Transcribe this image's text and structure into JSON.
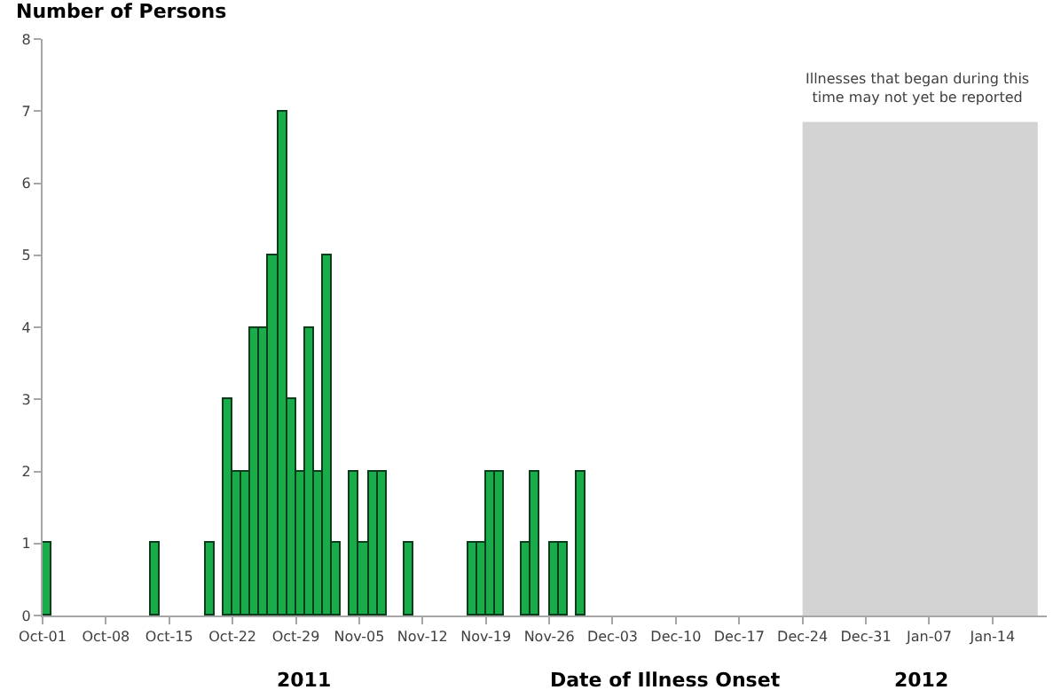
{
  "chart_data": {
    "type": "bar",
    "xlabel": "Date of Illness Onset",
    "ylabel": "Number of Persons",
    "x": [
      "2011-10-01",
      "2011-10-13",
      "2011-10-19",
      "2011-10-21",
      "2011-10-22",
      "2011-10-23",
      "2011-10-24",
      "2011-10-25",
      "2011-10-26",
      "2011-10-27",
      "2011-10-28",
      "2011-10-29",
      "2011-10-30",
      "2011-10-31",
      "2011-11-01",
      "2011-11-02",
      "2011-11-04",
      "2011-11-05",
      "2011-11-06",
      "2011-11-07",
      "2011-11-10",
      "2011-11-17",
      "2011-11-18",
      "2011-11-19",
      "2011-11-20",
      "2011-11-23",
      "2011-11-24",
      "2011-11-26",
      "2011-11-27",
      "2011-11-29"
    ],
    "values": [
      1,
      1,
      1,
      3,
      2,
      2,
      4,
      4,
      5,
      7,
      3,
      2,
      4,
      2,
      5,
      1,
      2,
      1,
      2,
      2,
      1,
      1,
      1,
      2,
      2,
      1,
      2,
      1,
      1,
      2
    ],
    "color": "#1aab4b",
    "xlim": [
      "2011-10-01",
      "2012-01-20"
    ],
    "xticks": [
      {
        "value": "2011-10-01",
        "label": "Oct-01"
      },
      {
        "value": "2011-10-08",
        "label": "Oct-08"
      },
      {
        "value": "2011-10-15",
        "label": "Oct-15"
      },
      {
        "value": "2011-10-22",
        "label": "Oct-22"
      },
      {
        "value": "2011-10-29",
        "label": "Oct-29"
      },
      {
        "value": "2011-11-05",
        "label": "Nov-05"
      },
      {
        "value": "2011-11-12",
        "label": "Nov-12"
      },
      {
        "value": "2011-11-19",
        "label": "Nov-19"
      },
      {
        "value": "2011-11-26",
        "label": "Nov-26"
      },
      {
        "value": "2011-12-03",
        "label": "Dec-03"
      },
      {
        "value": "2011-12-10",
        "label": "Dec-10"
      },
      {
        "value": "2011-12-17",
        "label": "Dec-17"
      },
      {
        "value": "2011-12-24",
        "label": "Dec-24"
      },
      {
        "value": "2011-12-31",
        "label": "Dec-31"
      },
      {
        "value": "2012-01-07",
        "label": "Jan-07"
      },
      {
        "value": "2012-01-14",
        "label": "Jan-14"
      }
    ],
    "ylim": [
      0,
      8
    ],
    "yticks": [
      0,
      1,
      2,
      3,
      4,
      5,
      6,
      7,
      8
    ],
    "bands": [
      {
        "axis": "x",
        "from": "2011-12-24",
        "to": "2012-01-19",
        "label": "Illnesses that began during this\ntime may not yet be reported",
        "color": "#d3d3d3"
      }
    ],
    "annotations": [
      "2011",
      "2012"
    ],
    "grid": false,
    "legend": false
  }
}
